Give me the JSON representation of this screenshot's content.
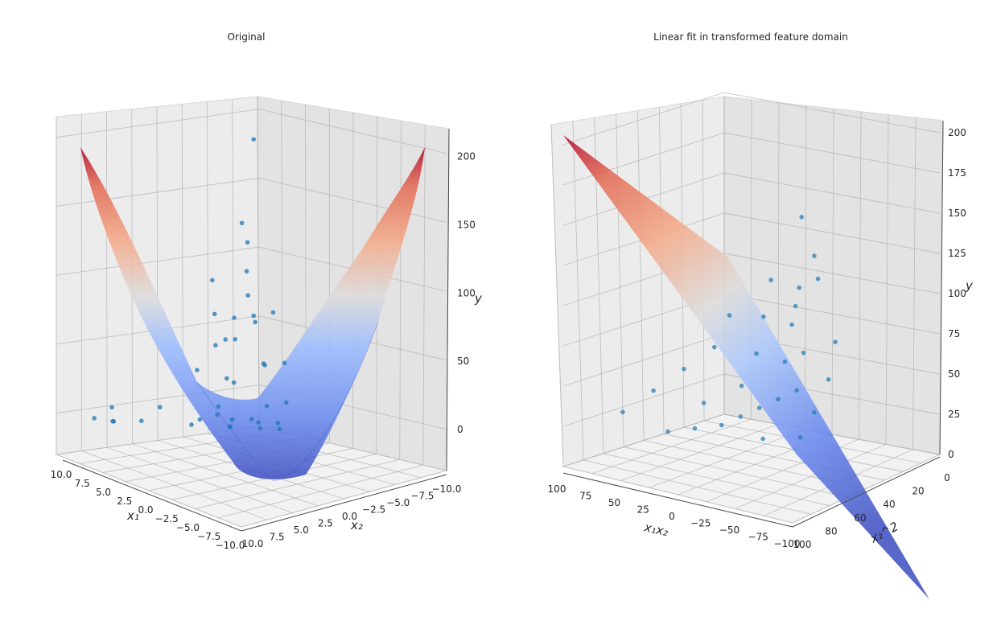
{
  "chart_data": [
    {
      "type": "surface3d",
      "title": "Original",
      "xlabel": "x₁",
      "ylabel": "x₂",
      "zlabel": "y",
      "x_ticks": [
        "10.0",
        "7.5",
        "5.0",
        "2.5",
        "0.0",
        "−2.5",
        "−5.0",
        "−7.5",
        "−10.0"
      ],
      "y_ticks": [
        "10.0",
        "7.5",
        "5.0",
        "2.5",
        "0.0",
        "−2.5",
        "−5.0",
        "−7.5",
        "−10.0"
      ],
      "z_ticks": [
        "0",
        "50",
        "100",
        "150",
        "200"
      ],
      "xlim": [
        -10,
        10
      ],
      "ylim": [
        -10,
        10
      ],
      "zlim": [
        -30,
        215
      ],
      "surface": "y = (x1 - x2)^2 / 2",
      "colormap": "coolwarm",
      "point_color": "#1f77b4",
      "grid": true,
      "scatter": [
        [
          9.5,
          -9,
          180
        ],
        [
          8,
          -7,
          110
        ],
        [
          8.5,
          -4,
          85
        ],
        [
          7,
          -6,
          92
        ],
        [
          6,
          -3,
          48
        ],
        [
          5,
          -5,
          60
        ],
        [
          4,
          -2,
          22
        ],
        [
          3,
          -4,
          35
        ],
        [
          2.5,
          1,
          6
        ],
        [
          1,
          -1,
          3
        ],
        [
          0,
          2,
          4
        ],
        [
          -1,
          0,
          2
        ],
        [
          -2,
          -1,
          2
        ],
        [
          -3,
          2,
          14
        ],
        [
          -4,
          1,
          14
        ],
        [
          -5,
          3,
          32
        ],
        [
          -6,
          2,
          35
        ],
        [
          -7,
          5,
          70
        ],
        [
          -8,
          4,
          72
        ],
        [
          -8.5,
          8,
          130
        ],
        [
          -9.5,
          9.5,
          188
        ],
        [
          -6,
          7,
          90
        ],
        [
          -4,
          6,
          55
        ],
        [
          -2,
          5,
          28
        ],
        [
          0,
          5,
          14
        ],
        [
          2,
          4,
          4
        ],
        [
          3,
          8,
          10
        ],
        [
          5,
          9,
          6
        ],
        [
          6,
          8,
          2
        ],
        [
          7,
          9,
          3
        ],
        [
          -5,
          8,
          85
        ],
        [
          -7,
          8,
          110
        ],
        [
          -3,
          8,
          62
        ],
        [
          1,
          8,
          25
        ],
        [
          4,
          10,
          20
        ],
        [
          -9,
          6,
          115
        ],
        [
          -6,
          9,
          112
        ],
        [
          -8,
          7,
          112
        ],
        [
          2,
          0,
          2
        ],
        [
          -1,
          3,
          8
        ]
      ]
    },
    {
      "type": "surface3d",
      "title": "Linear fit in transformed feature domain",
      "xlabel": "x₁x₂",
      "ylabel": "x₂^2",
      "zlabel": "y",
      "x_ticks": [
        "100",
        "75",
        "50",
        "25",
        "0",
        "−25",
        "−50",
        "−75",
        "−100"
      ],
      "y_ticks": [
        "0",
        "20",
        "40",
        "60",
        "80",
        "100"
      ],
      "z_ticks": [
        "0",
        "25",
        "50",
        "75",
        "100",
        "125",
        "150",
        "175",
        "200"
      ],
      "xlim": [
        -100,
        100
      ],
      "ylim": [
        0,
        100
      ],
      "zlim": [
        0,
        200
      ],
      "surface": "y = x2^2 - x1x2 (plane)",
      "colormap": "coolwarm",
      "point_color": "#1f77b4",
      "grid": true,
      "scatter": [
        [
          -95,
          90,
          185
        ],
        [
          -80,
          70,
          150
        ],
        [
          -70,
          60,
          130
        ],
        [
          -60,
          65,
          125
        ],
        [
          -50,
          60,
          110
        ],
        [
          -40,
          55,
          95
        ],
        [
          -30,
          40,
          70
        ],
        [
          -20,
          45,
          65
        ],
        [
          -10,
          30,
          40
        ],
        [
          0,
          35,
          35
        ],
        [
          10,
          40,
          30
        ],
        [
          20,
          45,
          25
        ],
        [
          30,
          50,
          20
        ],
        [
          40,
          60,
          20
        ],
        [
          50,
          70,
          20
        ],
        [
          -55,
          80,
          135
        ],
        [
          -35,
          70,
          105
        ],
        [
          -15,
          60,
          75
        ],
        [
          5,
          55,
          50
        ],
        [
          25,
          65,
          40
        ],
        [
          -25,
          85,
          110
        ],
        [
          -5,
          80,
          85
        ],
        [
          15,
          85,
          70
        ],
        [
          35,
          90,
          55
        ],
        [
          55,
          95,
          40
        ],
        [
          -45,
          30,
          75
        ],
        [
          -25,
          20,
          45
        ],
        [
          -5,
          15,
          20
        ],
        [
          15,
          10,
          0
        ],
        [
          35,
          20,
          0
        ]
      ]
    }
  ]
}
